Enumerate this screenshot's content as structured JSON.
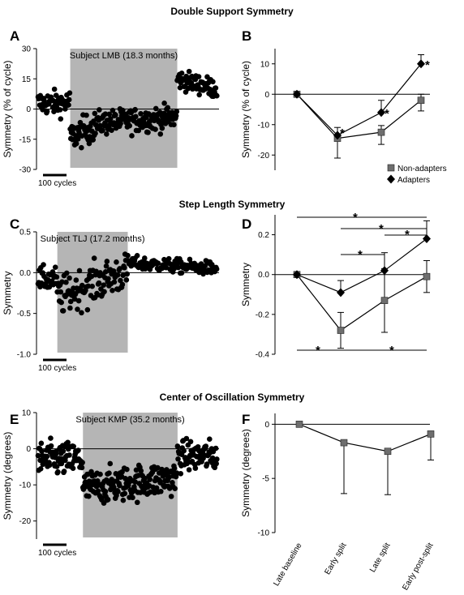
{
  "section_titles": [
    "Double Support Symmetry",
    "Step Length Symmetry",
    "Center of Oscillation Symmetry"
  ],
  "chart_data": [
    {
      "panel": "A",
      "type": "scatter",
      "subtitle": "Subject LMB (18.3 months)",
      "ylabel": "Symmetry (% of cycle)",
      "ylim": [
        -30,
        30
      ],
      "yticks": [
        30,
        15,
        0,
        -15,
        -30
      ],
      "scale_bar": "100 cycles",
      "phases": [
        {
          "start": 0,
          "end": 60,
          "center": 3,
          "spread": 5
        },
        {
          "start": 60,
          "end": 110,
          "center": -14,
          "spread": 6,
          "end_center": -8
        },
        {
          "start": 110,
          "end": 260,
          "center": -7,
          "spread": 5,
          "end_center": -4
        },
        {
          "start": 260,
          "end": 335,
          "center": 15,
          "spread": 4,
          "end_center": 10
        }
      ],
      "split_range": [
        60,
        260
      ],
      "x_total": 335
    },
    {
      "panel": "B",
      "type": "line",
      "ylabel": "Symmetry (% of cycle)",
      "ylim": [
        -25,
        15
      ],
      "yticks": [
        10,
        0,
        -10,
        -20
      ],
      "categories": [
        "Late baseline",
        "Early split",
        "Late split",
        "Early post-split"
      ],
      "series": [
        {
          "name": "Non-adapters",
          "marker": "square",
          "values": [
            0,
            -14.5,
            -12.5,
            -2
          ],
          "err": [
            0,
            6.5,
            4,
            3.5
          ]
        },
        {
          "name": "Adapters",
          "marker": "diamond",
          "values": [
            0,
            -13.5,
            -6,
            10
          ],
          "err": [
            0,
            0,
            4,
            3
          ]
        }
      ],
      "annotations": [
        "*",
        "*",
        "*"
      ],
      "legend_position": "bottom-right"
    },
    {
      "panel": "C",
      "type": "scatter",
      "subtitle": "Subject TLJ (17.2 months)",
      "ylabel": "Symmetry",
      "ylim": [
        -1.0,
        0.5
      ],
      "yticks": [
        "0.5",
        "0.0",
        "-0.5",
        "-1.0"
      ],
      "scale_bar": "100 cycles",
      "phases": [
        {
          "start": 0,
          "end": 30,
          "center": -0.08,
          "spread": 0.12
        },
        {
          "start": 30,
          "end": 140,
          "center": -0.3,
          "spread": 0.2,
          "end_center": 0.02
        },
        {
          "start": 140,
          "end": 280,
          "center": 0.12,
          "spread": 0.07,
          "end_center": 0.05
        }
      ],
      "split_range": [
        30,
        140
      ],
      "x_total": 280
    },
    {
      "panel": "D",
      "type": "line",
      "ylabel": "Symmetry",
      "ylim": [
        -0.4,
        0.3
      ],
      "yticks": [
        "0.2",
        "0.0",
        "-0.2",
        "-0.4"
      ],
      "categories": [
        "Late baseline",
        "Early split",
        "Late split",
        "Early post-split"
      ],
      "series": [
        {
          "name": "Non-adapters",
          "marker": "square",
          "values": [
            0,
            -0.28,
            -0.13,
            -0.01
          ],
          "err": [
            0,
            0.09,
            0.16,
            0.08
          ]
        },
        {
          "name": "Adapters",
          "marker": "diamond",
          "values": [
            0,
            -0.09,
            0.02,
            0.18
          ],
          "err": [
            0,
            0.06,
            0.09,
            0.09
          ]
        }
      ],
      "annotations": [
        "*",
        "*",
        "*",
        "*",
        "*",
        "*"
      ]
    },
    {
      "panel": "E",
      "type": "scatter",
      "subtitle": "Subject KMP (35.2 months)",
      "ylabel": "Symmetry (degrees)",
      "ylim": [
        -25,
        10
      ],
      "yticks": [
        10,
        0,
        -10,
        -20
      ],
      "scale_bar": "100 cycles",
      "phases": [
        {
          "start": 0,
          "end": 90,
          "center": -3,
          "spread": 4
        },
        {
          "start": 90,
          "end": 280,
          "center": -11,
          "spread": 4,
          "end_center": -8
        },
        {
          "start": 280,
          "end": 360,
          "center": -2,
          "spread": 3.5
        }
      ],
      "split_range": [
        90,
        280
      ],
      "x_total": 360
    },
    {
      "panel": "F",
      "type": "line",
      "ylabel": "Symmetry (degrees)",
      "ylim": [
        -10,
        1
      ],
      "yticks": [
        0,
        -5,
        -10
      ],
      "categories": [
        "Late baseline",
        "Early split",
        "Late split",
        "Early post-split"
      ],
      "series": [
        {
          "name": "",
          "marker": "square",
          "values": [
            0,
            -1.7,
            -2.5,
            -0.9
          ],
          "err": [
            0,
            4.7,
            4.0,
            2.4
          ]
        }
      ]
    }
  ]
}
